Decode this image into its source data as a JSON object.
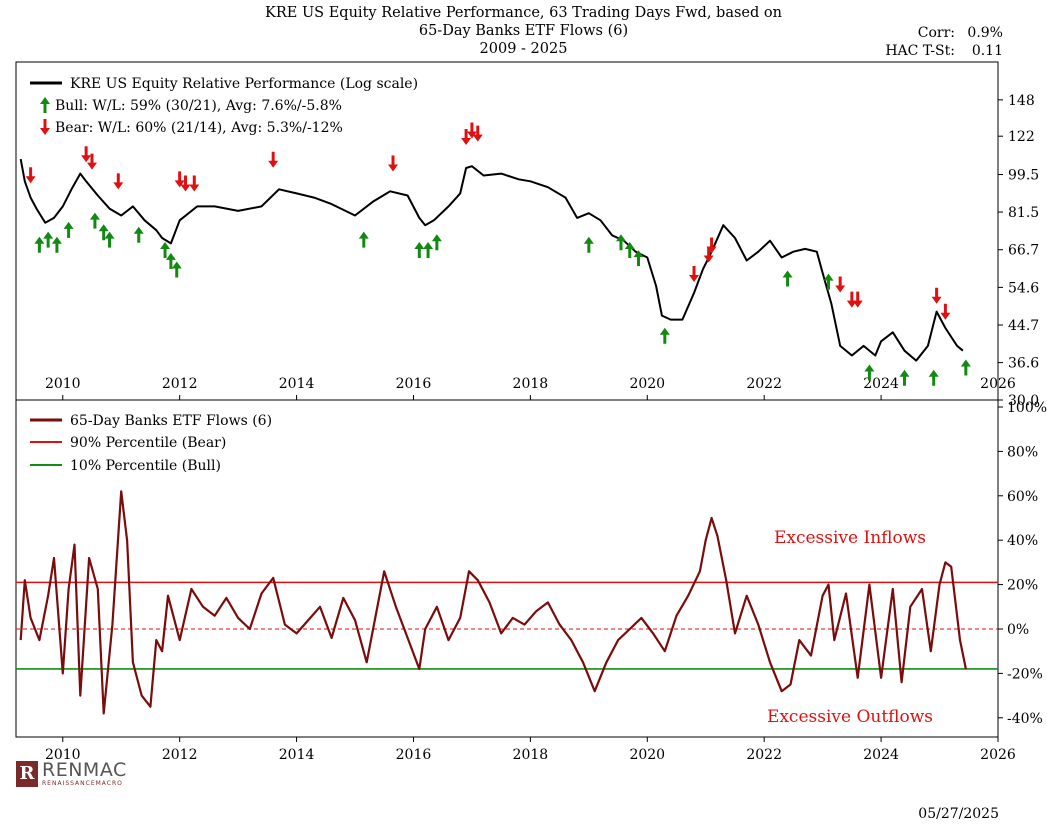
{
  "header": {
    "title_line1": "KRE US Equity Relative Performance, 63 Trading Days Fwd, based on",
    "title_line2": "65-Day Banks ETF Flows (6)",
    "title_line3": "2009 - 2025",
    "corr_label": "Corr:",
    "corr_value": "0.9%",
    "hac_label": "HAC T-St:",
    "hac_value": "0.11"
  },
  "footer": {
    "logo_letter": "R",
    "logo_text": "RENMAC",
    "logo_subtext": "RENAISSANCEMACRO",
    "date": "05/27/2025"
  },
  "colors": {
    "price": "#000000",
    "flows": "#7a0c0c",
    "bear_line": "#e01010",
    "bull_line": "#109010",
    "bear_arrow": "#e01010",
    "bull_arrow": "#128a12"
  },
  "chart_data": [
    {
      "type": "line",
      "legend": {
        "price_label": "KRE US Equity Relative Performance (Log scale)",
        "bull_label": "Bull:   W/L: 59% (30/21), Avg: 7.6%/-5.8%",
        "bear_label": "Bear:   W/L: 60% (21/14), Avg: 5.3%/-12%",
        "placement": "top-left"
      },
      "y_scale": "log",
      "xlim": [
        2009.2,
        2026
      ],
      "ylim": [
        30,
        181
      ],
      "x_ticks": [
        2010,
        2012,
        2014,
        2016,
        2018,
        2020,
        2022,
        2024,
        2026
      ],
      "y_ticks": [
        30.0,
        36.6,
        44.7,
        54.6,
        66.7,
        81.5,
        99.5,
        122,
        148
      ],
      "y_tick_labels": [
        "30.0",
        "36.6",
        "44.7",
        "54.6",
        "66.7",
        "81.5",
        "99.5",
        "122",
        "148"
      ],
      "series": [
        {
          "name": "KRE US Equity Relative Performance (Log scale)",
          "x": [
            2009.28,
            2009.35,
            2009.45,
            2009.55,
            2009.7,
            2009.85,
            2010.0,
            2010.15,
            2010.3,
            2010.4,
            2010.6,
            2010.8,
            2011.0,
            2011.2,
            2011.4,
            2011.6,
            2011.7,
            2011.85,
            2012.0,
            2012.3,
            2012.6,
            2013.0,
            2013.4,
            2013.7,
            2014.0,
            2014.3,
            2014.6,
            2015.0,
            2015.3,
            2015.6,
            2015.9,
            2016.1,
            2016.2,
            2016.35,
            2016.6,
            2016.8,
            2016.9,
            2017.0,
            2017.2,
            2017.5,
            2017.8,
            2018.0,
            2018.3,
            2018.6,
            2018.8,
            2019.0,
            2019.2,
            2019.4,
            2019.6,
            2019.8,
            2020.0,
            2020.15,
            2020.25,
            2020.4,
            2020.6,
            2020.8,
            2020.95,
            2021.1,
            2021.3,
            2021.5,
            2021.7,
            2021.9,
            2022.1,
            2022.3,
            2022.5,
            2022.7,
            2022.9,
            2023.0,
            2023.15,
            2023.3,
            2023.5,
            2023.7,
            2023.9,
            2024.0,
            2024.2,
            2024.4,
            2024.6,
            2024.8,
            2024.95,
            2025.1,
            2025.3,
            2025.4
          ],
          "y": [
            108,
            96,
            88,
            83,
            77,
            79,
            84,
            92,
            100,
            96,
            89,
            83,
            80,
            84,
            78,
            74,
            71,
            69,
            78,
            84,
            84,
            82,
            84,
            92,
            90,
            88,
            85,
            80,
            86,
            91,
            89,
            79,
            76,
            78,
            84,
            90,
            103,
            104,
            99,
            100,
            97,
            96,
            93,
            88,
            79,
            81,
            78,
            72,
            70,
            66,
            64,
            55,
            47,
            46,
            46,
            53,
            60,
            66,
            76,
            71,
            63,
            66,
            70,
            64,
            66,
            67,
            66,
            59,
            50,
            40,
            38,
            40,
            38,
            41,
            43,
            39,
            37,
            40,
            48,
            44,
            40,
            39
          ]
        }
      ],
      "bull_signals": [
        [
          2009.6,
          73
        ],
        [
          2009.75,
          75
        ],
        [
          2009.9,
          73
        ],
        [
          2010.1,
          79
        ],
        [
          2010.55,
          83
        ],
        [
          2010.7,
          78
        ],
        [
          2010.8,
          75
        ],
        [
          2011.3,
          77
        ],
        [
          2011.75,
          71
        ],
        [
          2011.85,
          67
        ],
        [
          2011.95,
          64
        ],
        [
          2015.15,
          75
        ],
        [
          2016.1,
          71
        ],
        [
          2016.25,
          71
        ],
        [
          2016.4,
          74
        ],
        [
          2019.0,
          73
        ],
        [
          2019.55,
          74
        ],
        [
          2019.7,
          71
        ],
        [
          2019.85,
          68
        ],
        [
          2020.3,
          45
        ],
        [
          2022.4,
          61
        ],
        [
          2023.1,
          60
        ],
        [
          2023.8,
          37
        ],
        [
          2024.4,
          36
        ],
        [
          2024.9,
          36
        ],
        [
          2025.45,
          38
        ]
      ],
      "bear_signals": [
        [
          2009.45,
          93
        ],
        [
          2010.4,
          104
        ],
        [
          2010.5,
          100
        ],
        [
          2010.95,
          90
        ],
        [
          2012.0,
          91
        ],
        [
          2012.1,
          89
        ],
        [
          2012.25,
          89
        ],
        [
          2013.6,
          101
        ],
        [
          2015.65,
          99
        ],
        [
          2016.9,
          114
        ],
        [
          2017.0,
          118
        ],
        [
          2017.1,
          116
        ],
        [
          2020.8,
          55
        ],
        [
          2021.05,
          61
        ],
        [
          2021.1,
          64
        ],
        [
          2023.3,
          52
        ],
        [
          2023.5,
          48
        ],
        [
          2023.6,
          48
        ],
        [
          2024.95,
          49
        ],
        [
          2025.1,
          45
        ]
      ]
    },
    {
      "type": "line",
      "legend": {
        "flows_label": "65-Day Banks ETF Flows (6)",
        "bear_label": "90% Percentile (Bear)",
        "bull_label": "10% Percentile (Bull)",
        "placement": "top-left"
      },
      "xlim": [
        2009.2,
        2026
      ],
      "ylim": [
        -50,
        100
      ],
      "x_ticks": [
        2010,
        2012,
        2014,
        2016,
        2018,
        2020,
        2022,
        2024,
        2026
      ],
      "y_ticks": [
        -40,
        -20,
        0,
        20,
        40,
        60,
        80,
        100
      ],
      "y_tick_labels": [
        "-40%",
        "-20%",
        "0%",
        "20%",
        "40%",
        "60%",
        "80%",
        "100%"
      ],
      "thresholds": {
        "bear": 21,
        "bull": -18,
        "zero": 0
      },
      "annotations": {
        "inflows": "Excessive Inflows",
        "outflows": "Excessive Outflows"
      },
      "series": [
        {
          "name": "65-Day Banks ETF Flows (6)",
          "x": [
            2009.28,
            2009.35,
            2009.45,
            2009.6,
            2009.75,
            2009.85,
            2010.0,
            2010.1,
            2010.2,
            2010.3,
            2010.45,
            2010.6,
            2010.7,
            2010.85,
            2011.0,
            2011.1,
            2011.2,
            2011.35,
            2011.5,
            2011.6,
            2011.7,
            2011.8,
            2012.0,
            2012.2,
            2012.4,
            2012.6,
            2012.8,
            2013.0,
            2013.2,
            2013.4,
            2013.6,
            2013.8,
            2014.0,
            2014.2,
            2014.4,
            2014.6,
            2014.8,
            2015.0,
            2015.2,
            2015.5,
            2015.7,
            2015.9,
            2016.1,
            2016.2,
            2016.4,
            2016.6,
            2016.8,
            2016.95,
            2017.1,
            2017.3,
            2017.5,
            2017.7,
            2017.9,
            2018.1,
            2018.3,
            2018.5,
            2018.7,
            2018.9,
            2019.1,
            2019.3,
            2019.5,
            2019.7,
            2019.9,
            2020.1,
            2020.3,
            2020.5,
            2020.7,
            2020.9,
            2021.0,
            2021.1,
            2021.2,
            2021.35,
            2021.5,
            2021.7,
            2021.9,
            2022.1,
            2022.3,
            2022.45,
            2022.6,
            2022.8,
            2023.0,
            2023.1,
            2023.2,
            2023.4,
            2023.6,
            2023.8,
            2024.0,
            2024.2,
            2024.35,
            2024.5,
            2024.7,
            2024.85,
            2025.0,
            2025.1,
            2025.2,
            2025.35,
            2025.45
          ],
          "y": [
            -5,
            22,
            5,
            -5,
            15,
            32,
            -20,
            18,
            38,
            -30,
            32,
            18,
            -38,
            2,
            62,
            40,
            -15,
            -30,
            -35,
            -5,
            -10,
            15,
            -5,
            18,
            10,
            6,
            14,
            5,
            0,
            16,
            23,
            2,
            -2,
            4,
            10,
            -4,
            14,
            4,
            -15,
            26,
            10,
            -4,
            -18,
            0,
            10,
            -5,
            5,
            26,
            22,
            12,
            -2,
            5,
            2,
            8,
            12,
            2,
            -5,
            -15,
            -28,
            -15,
            -5,
            0,
            5,
            -2,
            -10,
            6,
            15,
            26,
            40,
            50,
            42,
            22,
            -2,
            15,
            2,
            -15,
            -28,
            -25,
            -5,
            -12,
            15,
            20,
            -5,
            16,
            -22,
            20,
            -22,
            18,
            -24,
            10,
            18,
            -10,
            20,
            30,
            28,
            -5,
            -18
          ]
        },
        {
          "name": "90% Percentile (Bear)",
          "values": [
            21
          ]
        },
        {
          "name": "10% Percentile (Bull)",
          "values": [
            -18
          ]
        }
      ]
    }
  ]
}
